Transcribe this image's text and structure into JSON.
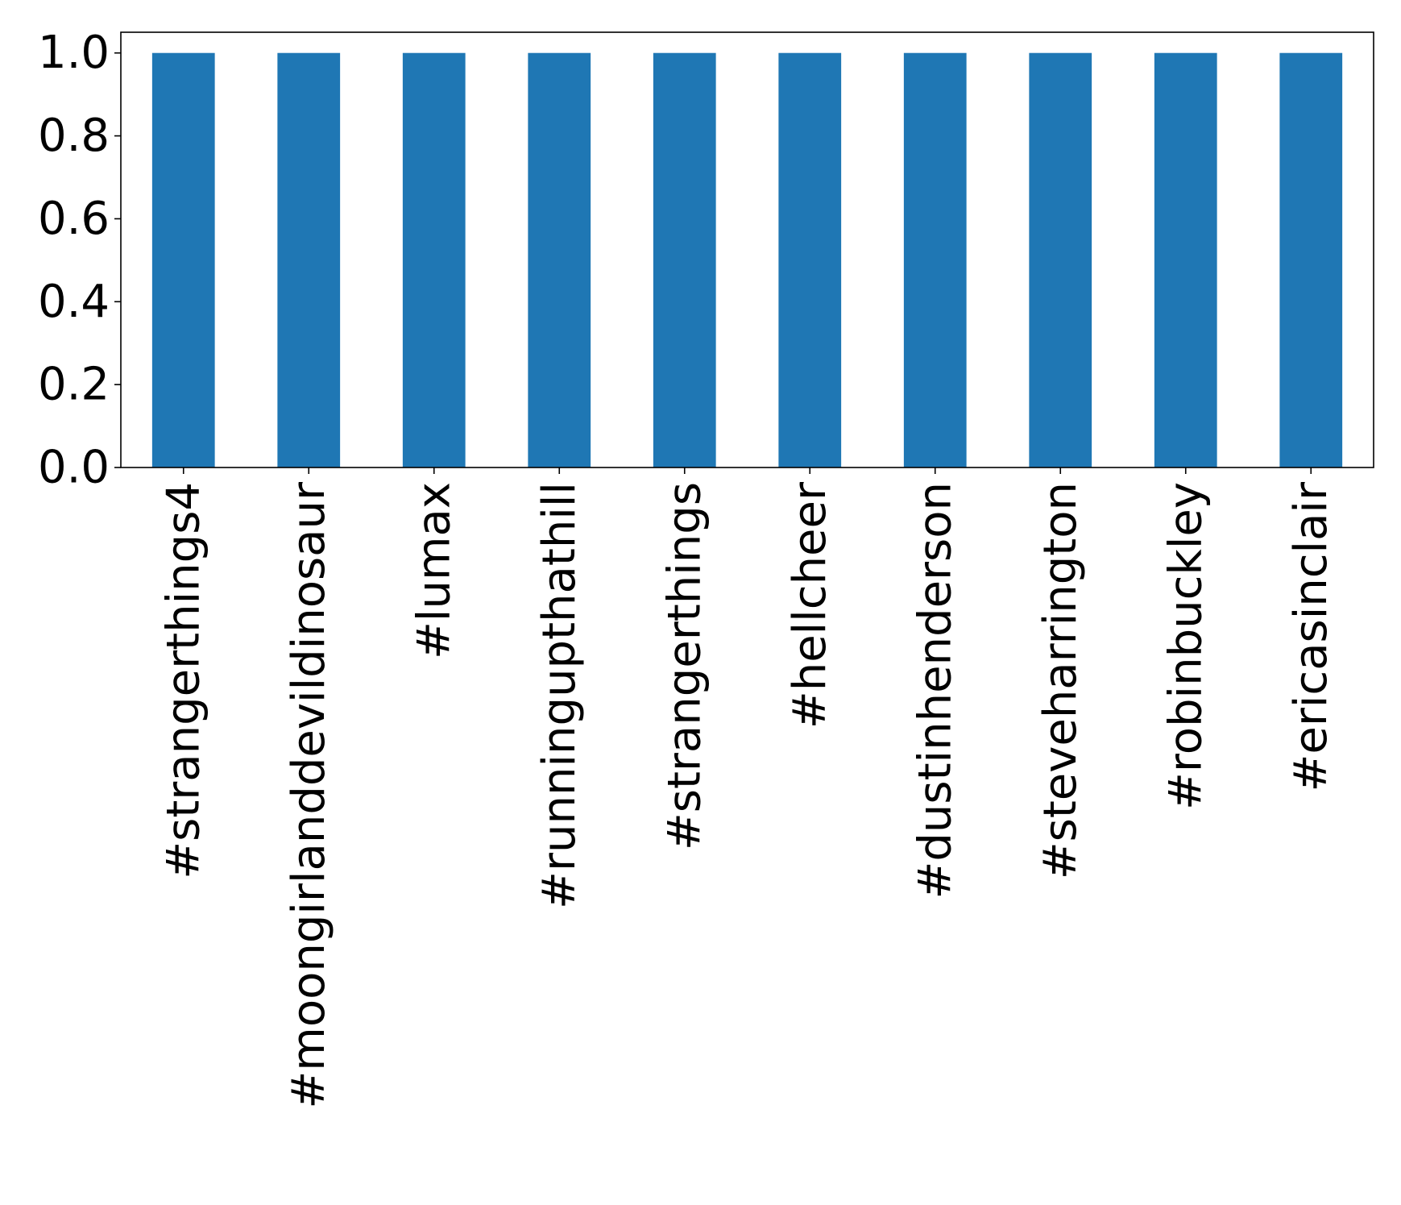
{
  "chart_data": {
    "type": "bar",
    "categories": [
      "#strangerthings4",
      "#moongirlanddevildinosaur",
      "#lumax",
      "#runningupthathill",
      "#strangerthings",
      "#hellcheer",
      "#dustinhenderson",
      "#steveharrington",
      "#robinbuckley",
      "#ericasinclair"
    ],
    "values": [
      1.0,
      1.0,
      1.0,
      1.0,
      1.0,
      1.0,
      1.0,
      1.0,
      1.0,
      1.0
    ],
    "ylim": [
      0,
      1.05
    ],
    "yticks": [
      "0.0",
      "0.2",
      "0.4",
      "0.6",
      "0.8",
      "1.0"
    ],
    "bar_color": "#1f77b4",
    "grid": false,
    "legend": "none"
  }
}
